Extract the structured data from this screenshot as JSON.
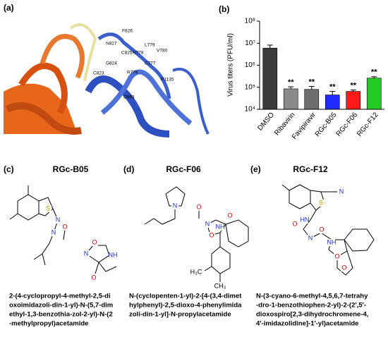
{
  "panels": {
    "a": {
      "label": "(a)",
      "residues": [
        "F826",
        "N827",
        "C825",
        "H778",
        "L779",
        "V780",
        "G824",
        "C777",
        "C823",
        "R776",
        "P1135",
        "D969"
      ]
    },
    "b": {
      "label": "(b)"
    }
  },
  "chart_data": {
    "type": "bar",
    "y_label": "Virus titers (PFU/ml)",
    "log_scale": true,
    "categories": [
      "DMSO",
      "Ribavirin",
      "Favipiravir",
      "RGc-B05",
      "RGc-F06",
      "RGc-F12"
    ],
    "values": [
      6000000,
      85000,
      80000,
      45000,
      65000,
      260000
    ],
    "errors": [
      2200000,
      20000,
      30000,
      20000,
      10000,
      40000
    ],
    "colors": [
      "#3a3a3a",
      "#8a8a8a",
      "#6e6e6e",
      "#1f2bff",
      "#ff1a1a",
      "#22cc22"
    ],
    "annotations": [
      null,
      "**",
      "**",
      "**",
      "**",
      "**"
    ],
    "ylim": [
      10000,
      100000000
    ],
    "yticks": [
      {
        "value": 10000,
        "label": "10⁴"
      },
      {
        "value": 100000,
        "label": "10⁵"
      },
      {
        "value": 1000000,
        "label": "10⁶"
      },
      {
        "value": 10000000,
        "label": "10⁷"
      },
      {
        "value": 100000000,
        "label": "10⁸"
      }
    ]
  },
  "compounds": [
    {
      "label": "(c)",
      "name": "RGc-B05",
      "atoms": [
        "S",
        "N",
        "N",
        "O",
        "N",
        "O",
        "NH",
        "O"
      ],
      "description": [
        "2-(4-cyclopropyl-4-methyl-2,5-di",
        "oxoimidazoli-din-1-yl)-N-(5,7-dim",
        "ethyl-1,3-benzothia-zol-2-yl)-N-(2",
        "-methylpropyl)acetamide"
      ]
    },
    {
      "label": "(d)",
      "name": "RGc-F06",
      "atoms": [
        "N",
        "O",
        "O",
        "N",
        "NH",
        "O",
        "H₃C",
        "CH₃"
      ],
      "description": [
        "N-(cyclopenten-1-yl)-2-[4-(3,4-dimet",
        "hylphenyl)-2,5-dioxo-4-phenylimida",
        "zoli-din-1-yl]-N-propylacetamide"
      ]
    },
    {
      "label": "(e)",
      "name": "RGc-F12",
      "atoms": [
        "S",
        "N",
        "HN",
        "O",
        "N",
        "O",
        "NH",
        "O",
        "O"
      ],
      "description": [
        "N-(3-cyano-6-methyl-4,5,6,7-tetrahy",
        "-dro-1-benzothiophen-2-yl)-2-(2',5'-",
        "dioxospiro[2,3-dihydrochromene-4,",
        "4'-imidazolidine]-1'-yl)acetamide"
      ]
    }
  ]
}
